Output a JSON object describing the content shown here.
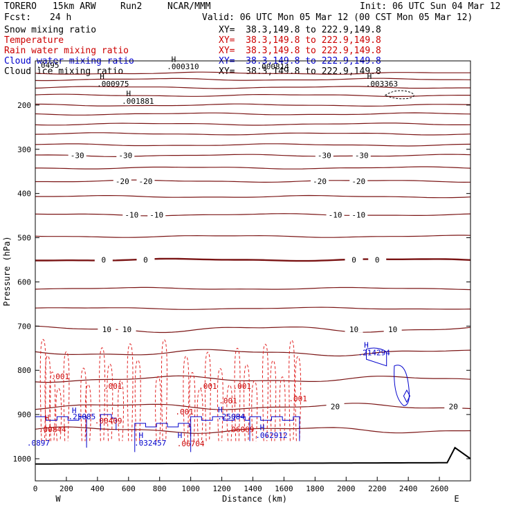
{
  "header": {
    "model": "TORERO",
    "resolution": "15km ARW",
    "run": "Run2",
    "org": "NCAR/MMM",
    "init": "Init: 06 UTC Sun 04 Mar 12",
    "fcst_label": "Fcst:",
    "fcst_value": "24 h",
    "valid": "Valid: 06 UTC Mon 05 Mar 12 (00 CST Mon 05 Mar 12)"
  },
  "fields": [
    {
      "name": "Snow mixing ratio",
      "xy": "XY=  38.3,149.8 to 222.9,149.8",
      "color": "#000000"
    },
    {
      "name": "Temperature",
      "xy": "XY=  38.3,149.8 to 222.9,149.8",
      "color": "#cc0000"
    },
    {
      "name": "Rain water mixing ratio",
      "xy": "XY=  38.3,149.8 to 222.9,149.8",
      "color": "#cc0000"
    },
    {
      "name": "Cloud water mixing ratio",
      "xy": "XY=  38.3,149.8 to 222.9,149.8",
      "color": "#0000cc"
    },
    {
      "name": "Cloud ice mixing ratio",
      "xy": "XY=  38.3,149.8 to 222.9,149.8",
      "color": "#000000"
    }
  ],
  "chart_data": {
    "type": "cross-section",
    "title": "Snow mixing ratio / Temperature / Rain water / Cloud water / Cloud ice",
    "xlabel": "Distance (km)",
    "ylabel": "Pressure (hPa)",
    "xlim": [
      0,
      2800
    ],
    "ylim": [
      1050,
      100
    ],
    "x_ticks": [
      0,
      200,
      400,
      600,
      800,
      1000,
      1200,
      1400,
      1600,
      1800,
      2000,
      2200,
      2400,
      2600
    ],
    "y_ticks": [
      200,
      300,
      400,
      500,
      600,
      700,
      800,
      900,
      1000
    ],
    "west_label": "W",
    "east_label": "E",
    "temperature_isotherms": [
      {
        "value": -30,
        "label": "-30",
        "label_pressure": 314,
        "label_x": [
          270,
          580,
          1860,
          2100
        ]
      },
      {
        "value": -20,
        "label": "-20",
        "label_pressure": 372,
        "label_x": [
          560,
          710,
          1830,
          2080
        ]
      },
      {
        "value": -10,
        "label": "-10",
        "label_pressure": 448,
        "label_x": [
          620,
          780,
          1930,
          2080
        ]
      },
      {
        "value": 0,
        "label": "0",
        "label_pressure": 550,
        "label_x": [
          440,
          710,
          2050,
          2200
        ]
      },
      {
        "value": 10,
        "label": "10",
        "label_pressure": 707,
        "label_x": [
          460,
          590,
          2050,
          2300
        ]
      },
      {
        "value": 20,
        "label": "20",
        "label_pressure": 882,
        "label_x": [
          1930,
          2690
        ]
      }
    ],
    "isotherm_levels_hpa": [
      128,
      142,
      160,
      178,
      200,
      220,
      243,
      265,
      290,
      314,
      342,
      372,
      407,
      448,
      497,
      550,
      615,
      660,
      707,
      760,
      820,
      882,
      935
    ],
    "rain_water_labels": [
      {
        "text": ".001",
        "x": 160,
        "p": 820
      },
      {
        "text": ".001",
        "x": 500,
        "p": 842
      },
      {
        "text": ".001",
        "x": 1110,
        "p": 842
      },
      {
        "text": ".001",
        "x": 1330,
        "p": 842
      },
      {
        "text": ".001",
        "x": 1240,
        "p": 875
      },
      {
        "text": ".001",
        "x": 1690,
        "p": 870
      },
      {
        "text": ".001",
        "x": 960,
        "p": 900
      },
      {
        "text": "H",
        "x": 75,
        "p": 913
      },
      {
        "text": ".00844",
        "x": 110,
        "p": 940
      },
      {
        "text": ".00409",
        "x": 470,
        "p": 920
      },
      {
        "text": ".06704",
        "x": 1000,
        "p": 972
      },
      {
        "text": ".06069",
        "x": 1320,
        "p": 940
      }
    ],
    "cloud_water_labels": [
      {
        "text": "H",
        "x": 2130,
        "p": 749
      },
      {
        "text": ".214294",
        "x": 2180,
        "p": 766
      },
      {
        "text": "H",
        "x": 250,
        "p": 897
      },
      {
        "text": ".25085",
        "x": 300,
        "p": 911
      },
      {
        "text": ".25084",
        "x": 1260,
        "p": 911
      },
      {
        "text": "H",
        "x": 1190,
        "p": 895
      },
      {
        "text": "H",
        "x": 680,
        "p": 953
      },
      {
        "text": ".032457",
        "x": 740,
        "p": 970
      },
      {
        "text": "H",
        "x": 930,
        "p": 953
      },
      {
        "text": "H",
        "x": 1460,
        "p": 935
      },
      {
        "text": ".062912",
        "x": 1520,
        "p": 953
      },
      {
        "text": ".0897",
        "x": 20,
        "p": 970
      }
    ],
    "snow_labels": [
      {
        "text": "H",
        "x": 430,
        "p": 141
      },
      {
        "text": ".000975",
        "x": 500,
        "p": 158
      },
      {
        "text": "H",
        "x": 600,
        "p": 180
      },
      {
        "text": ".001881",
        "x": 660,
        "p": 197
      },
      {
        "text": "H",
        "x": 890,
        "p": 102
      },
      {
        "text": ".000310",
        "x": 950,
        "p": 119
      },
      {
        "text": "H",
        "x": 2150,
        "p": 141
      },
      {
        "text": ".003363",
        "x": 2230,
        "p": 158
      },
      {
        "text": ".000814",
        "x": 1530,
        "p": 119
      },
      {
        "text": ".0495",
        "x": 80,
        "p": 116
      }
    ]
  }
}
